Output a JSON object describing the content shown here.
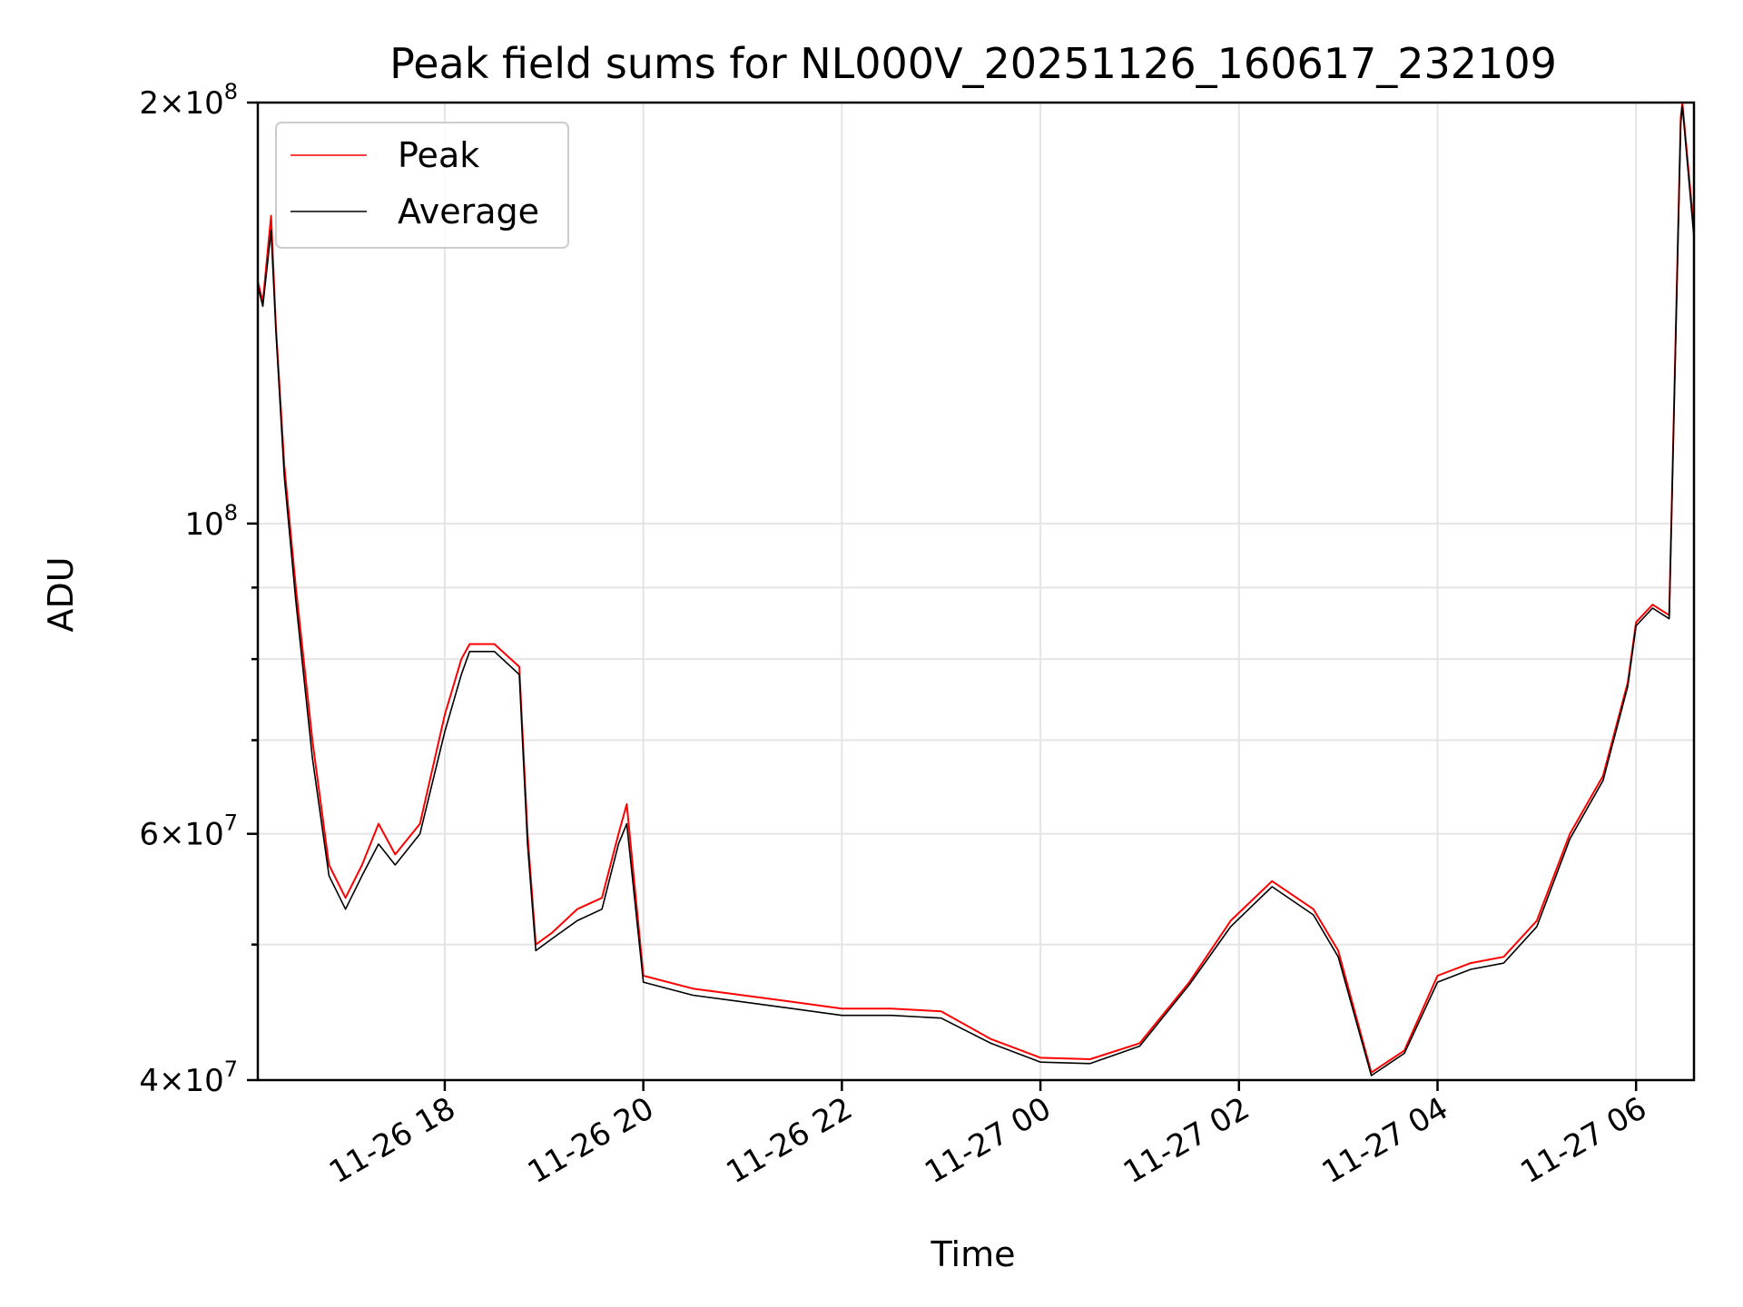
{
  "chart_data": {
    "type": "line",
    "title": "Peak field sums for NL000V_20251126_160617_232109",
    "xlabel": "Time",
    "ylabel": "ADU",
    "yscale": "log",
    "ylim": [
      40000000,
      200000000
    ],
    "xlim": [
      "2025-11-26 16:07",
      "2025-11-27 06:35"
    ],
    "grid": true,
    "legend_position": "top-left",
    "x_ticks": [
      "11-26 18",
      "11-26 20",
      "11-26 22",
      "11-27 00",
      "11-27 02",
      "11-27 04",
      "11-27 06"
    ],
    "x_tick_times": [
      "2025-11-26 18:00",
      "2025-11-26 20:00",
      "2025-11-26 22:00",
      "2025-11-27 00:00",
      "2025-11-27 02:00",
      "2025-11-27 04:00",
      "2025-11-27 06:00"
    ],
    "y_ticks": [
      {
        "value": 40000000,
        "mantissa": "4",
        "base": "10",
        "exp": "7"
      },
      {
        "value": 60000000,
        "mantissa": "6",
        "base": "10",
        "exp": "7"
      },
      {
        "value": 100000000,
        "mantissa": "",
        "base": "10",
        "exp": "8"
      },
      {
        "value": 200000000,
        "mantissa": "2",
        "base": "10",
        "exp": "8"
      }
    ],
    "y_minor_ticks": [
      50000000,
      70000000,
      80000000,
      90000000
    ],
    "series": [
      {
        "name": "Peak",
        "color": "#ff0000"
      },
      {
        "name": "Average",
        "color": "#000000"
      }
    ],
    "x": [
      "2025-11-26 16:07",
      "2025-11-26 16:10",
      "2025-11-26 16:15",
      "2025-11-26 16:18",
      "2025-11-26 16:23",
      "2025-11-26 16:30",
      "2025-11-26 16:40",
      "2025-11-26 16:50",
      "2025-11-26 17:00",
      "2025-11-26 17:10",
      "2025-11-26 17:20",
      "2025-11-26 17:30",
      "2025-11-26 17:45",
      "2025-11-26 18:00",
      "2025-11-26 18:10",
      "2025-11-26 18:15",
      "2025-11-26 18:30",
      "2025-11-26 18:45",
      "2025-11-26 18:50",
      "2025-11-26 18:55",
      "2025-11-26 19:05",
      "2025-11-26 19:20",
      "2025-11-26 19:35",
      "2025-11-26 19:45",
      "2025-11-26 19:50",
      "2025-11-26 20:00",
      "2025-11-26 20:30",
      "2025-11-26 21:00",
      "2025-11-26 21:30",
      "2025-11-26 22:00",
      "2025-11-26 22:30",
      "2025-11-26 23:00",
      "2025-11-26 23:30",
      "2025-11-27 00:00",
      "2025-11-27 00:30",
      "2025-11-27 01:00",
      "2025-11-27 01:30",
      "2025-11-27 01:55",
      "2025-11-27 02:20",
      "2025-11-27 02:45",
      "2025-11-27 03:00",
      "2025-11-27 03:20",
      "2025-11-27 03:40",
      "2025-11-27 04:00",
      "2025-11-27 04:20",
      "2025-11-27 04:40",
      "2025-11-27 05:00",
      "2025-11-27 05:20",
      "2025-11-27 05:40",
      "2025-11-27 05:55",
      "2025-11-27 06:00",
      "2025-11-27 06:10",
      "2025-11-27 06:20",
      "2025-11-27 06:27",
      "2025-11-27 06:28",
      "2025-11-27 06:35"
    ],
    "peak": [
      149000000,
      144000000,
      166000000,
      138000000,
      110000000,
      90000000,
      70000000,
      57000000,
      54000000,
      57000000,
      61000000,
      58000000,
      61000000,
      73000000,
      80000000,
      82000000,
      82000000,
      79000000,
      60000000,
      50000000,
      51000000,
      53000000,
      54000000,
      60000000,
      63000000,
      47500000,
      46500000,
      46000000,
      45500000,
      45000000,
      45000000,
      44800000,
      42800000,
      41500000,
      41400000,
      42500000,
      47000000,
      52000000,
      55500000,
      53000000,
      49500000,
      40500000,
      42000000,
      47500000,
      48500000,
      49000000,
      52000000,
      60000000,
      66000000,
      77000000,
      85000000,
      87500000,
      86000000,
      195000000,
      200000000,
      162000000
    ],
    "average": [
      148000000,
      143000000,
      162000000,
      137000000,
      108000000,
      88000000,
      68000000,
      56000000,
      53000000,
      56000000,
      59000000,
      57000000,
      60000000,
      71000000,
      78000000,
      81000000,
      81000000,
      78000000,
      59000000,
      49500000,
      50500000,
      52000000,
      53000000,
      59000000,
      61000000,
      47000000,
      46000000,
      45500000,
      45000000,
      44500000,
      44500000,
      44300000,
      42500000,
      41200000,
      41100000,
      42300000,
      46800000,
      51500000,
      55000000,
      52500000,
      49000000,
      40300000,
      41800000,
      47000000,
      48000000,
      48500000,
      51500000,
      59500000,
      65500000,
      76500000,
      84500000,
      87000000,
      85500000,
      193000000,
      199000000,
      160000000
    ]
  }
}
